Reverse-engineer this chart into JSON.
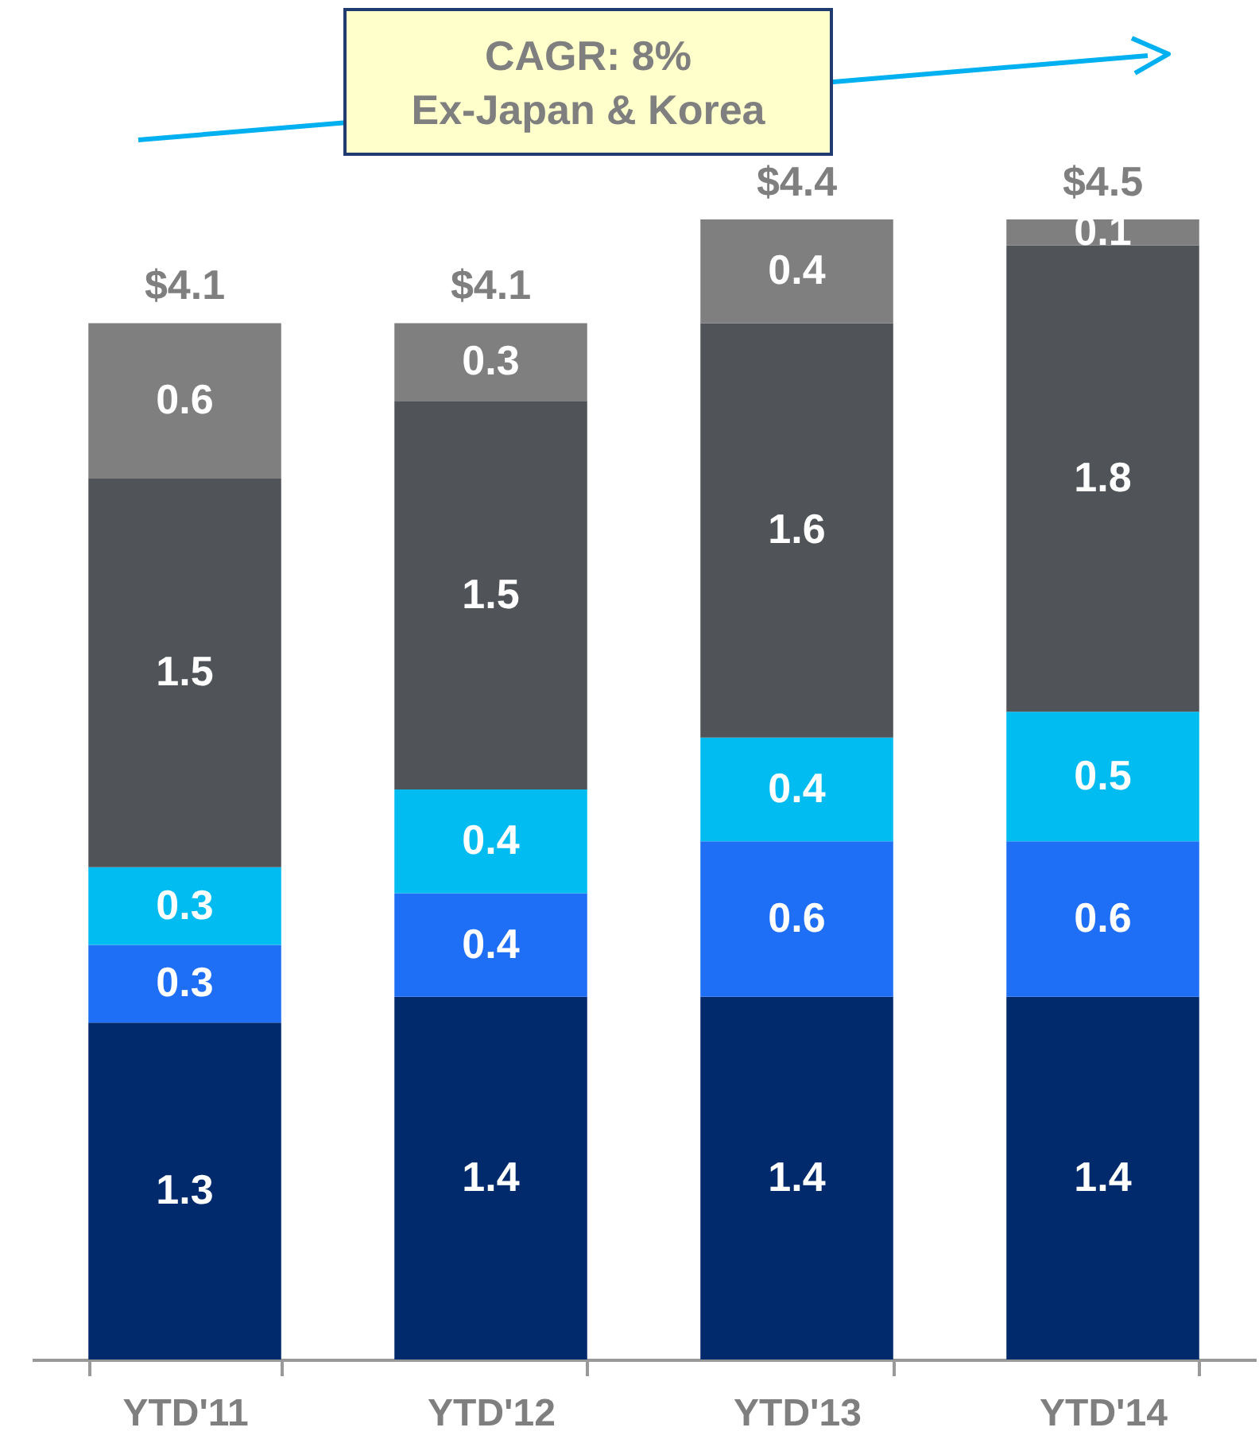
{
  "chart_data": {
    "type": "bar",
    "stacked": true,
    "data_labels": true,
    "categories": [
      "YTD'11",
      "YTD'12",
      "YTD'13",
      "YTD'14"
    ],
    "series": [
      {
        "color": "#002a6c",
        "values": [
          1.3,
          1.4,
          1.4,
          1.4
        ]
      },
      {
        "color": "#1e6ff5",
        "values": [
          0.3,
          0.4,
          0.6,
          0.6
        ]
      },
      {
        "color": "#00bcf0",
        "values": [
          0.3,
          0.4,
          0.4,
          0.5
        ]
      },
      {
        "color": "#505459",
        "values": [
          1.5,
          1.5,
          1.6,
          1.8
        ]
      },
      {
        "color": "#7f7f7f",
        "values": [
          0.6,
          0.3,
          0.4,
          0.1
        ]
      }
    ],
    "totals": [
      "$4.1",
      "$4.1",
      "$4.4",
      "$4.5"
    ],
    "annotations": [
      "CAGR: 8%\nEx-Japan & Korea"
    ]
  }
}
